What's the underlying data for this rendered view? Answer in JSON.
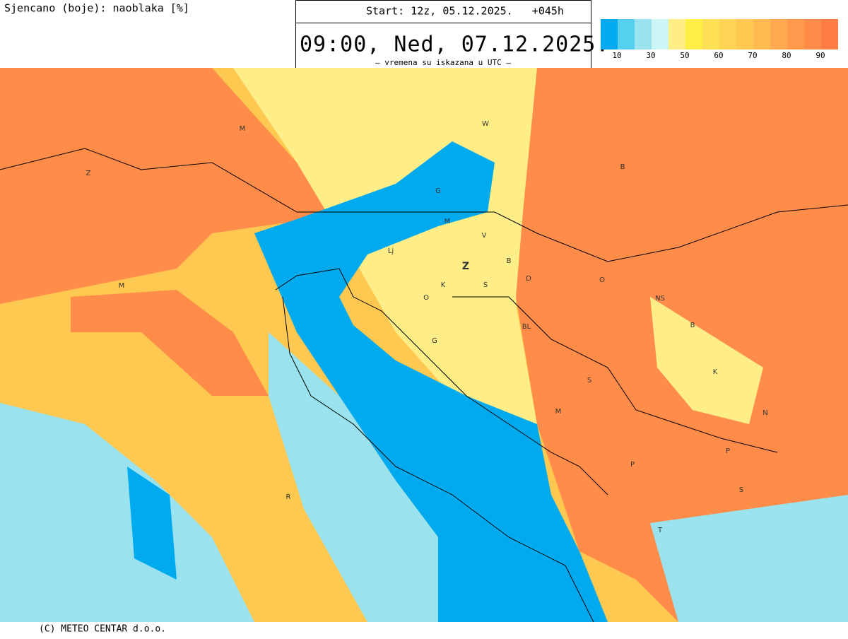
{
  "header": {
    "title": "Sjencano (boje): naoblaka [%]",
    "start": "Start: 12z, 05.12.2025.   +045h",
    "valid_time": "09:00, Ned, 07.12.2025.",
    "note": "– vremena su iskazana u UTC –"
  },
  "legend": {
    "colors": [
      "#00aaee",
      "#55d0ee",
      "#99e2ee",
      "#ccf6f6",
      "#ffee88",
      "#ffee44",
      "#ffe055",
      "#ffd455",
      "#ffc850",
      "#ffbb50",
      "#ffaa50",
      "#ff9a4c",
      "#ff8c48",
      "#ff7d44"
    ],
    "ticks": [
      10,
      30,
      50,
      60,
      70,
      80,
      90
    ]
  },
  "map_labels": [
    "M",
    "Z",
    "M",
    "W",
    "G",
    "B",
    "M",
    "V",
    "Lj",
    "Z",
    "B",
    "K",
    "S",
    "D",
    "O",
    "O",
    "NS",
    "BL",
    "G",
    "B",
    "K",
    "S",
    "M",
    "N",
    "P",
    "P",
    "S",
    "R",
    "T"
  ],
  "footer": "(C) METEO CENTAR d.o.o."
}
